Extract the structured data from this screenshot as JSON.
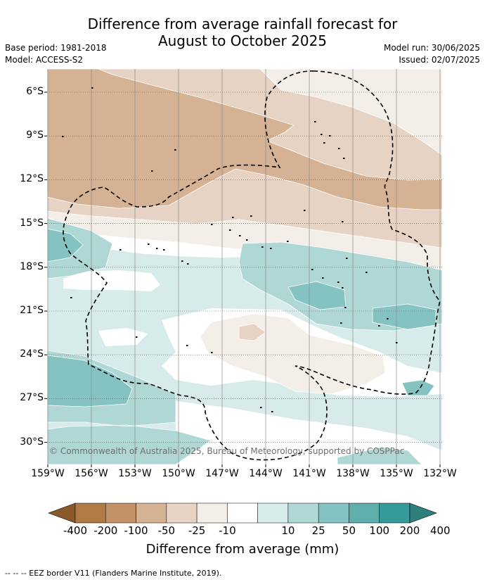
{
  "title_line1": "Difference from average rainfall forecast for",
  "title_line2": "August to October 2025",
  "base_period": "Base period: 1981-2018",
  "model": "Model: ACCESS-S2",
  "model_run": "Model run: 30/06/2025",
  "issued": "Issued: 02/07/2025",
  "copyright": "© Commonwealth of Australia 2025, Bureau of Meteorology, supported by COSPPac",
  "footer": "-- -- -- EEZ border V11 (Flanders Marine Institute, 2019).",
  "lat_labels": [
    "6°S",
    "9°S",
    "12°S",
    "15°S",
    "18°S",
    "21°S",
    "24°S",
    "27°S",
    "30°S"
  ],
  "lon_labels": [
    "159°W",
    "156°W",
    "153°W",
    "150°W",
    "147°W",
    "144°W",
    "141°W",
    "138°W",
    "135°W",
    "132°W"
  ],
  "colorbar": {
    "title": "Difference from average (mm)",
    "labels": [
      "-400",
      "-200",
      "-100",
      "-50",
      "-25",
      "-10",
      "10",
      "25",
      "50",
      "100",
      "200",
      "400"
    ],
    "colors": [
      "#8b5a2b",
      "#b07a45",
      "#c39168",
      "#d4b293",
      "#e6d3c3",
      "#f3eee8",
      "#ffffff",
      "#d6ebea",
      "#aed7d5",
      "#84c3c1",
      "#5eaeac",
      "#369b98",
      "#2f7f7c"
    ]
  },
  "colors": {
    "c_m400": "#b07a45",
    "c_m200": "#c39168",
    "c_m100": "#d4b293",
    "c_m50": "#e6d3c3",
    "c_m25": "#f3eee8",
    "c_zero": "#ffffff",
    "c_p25": "#d6ebea",
    "c_p50": "#aed7d5",
    "c_p100": "#84c3c1",
    "c_p200": "#5eaeac"
  }
}
